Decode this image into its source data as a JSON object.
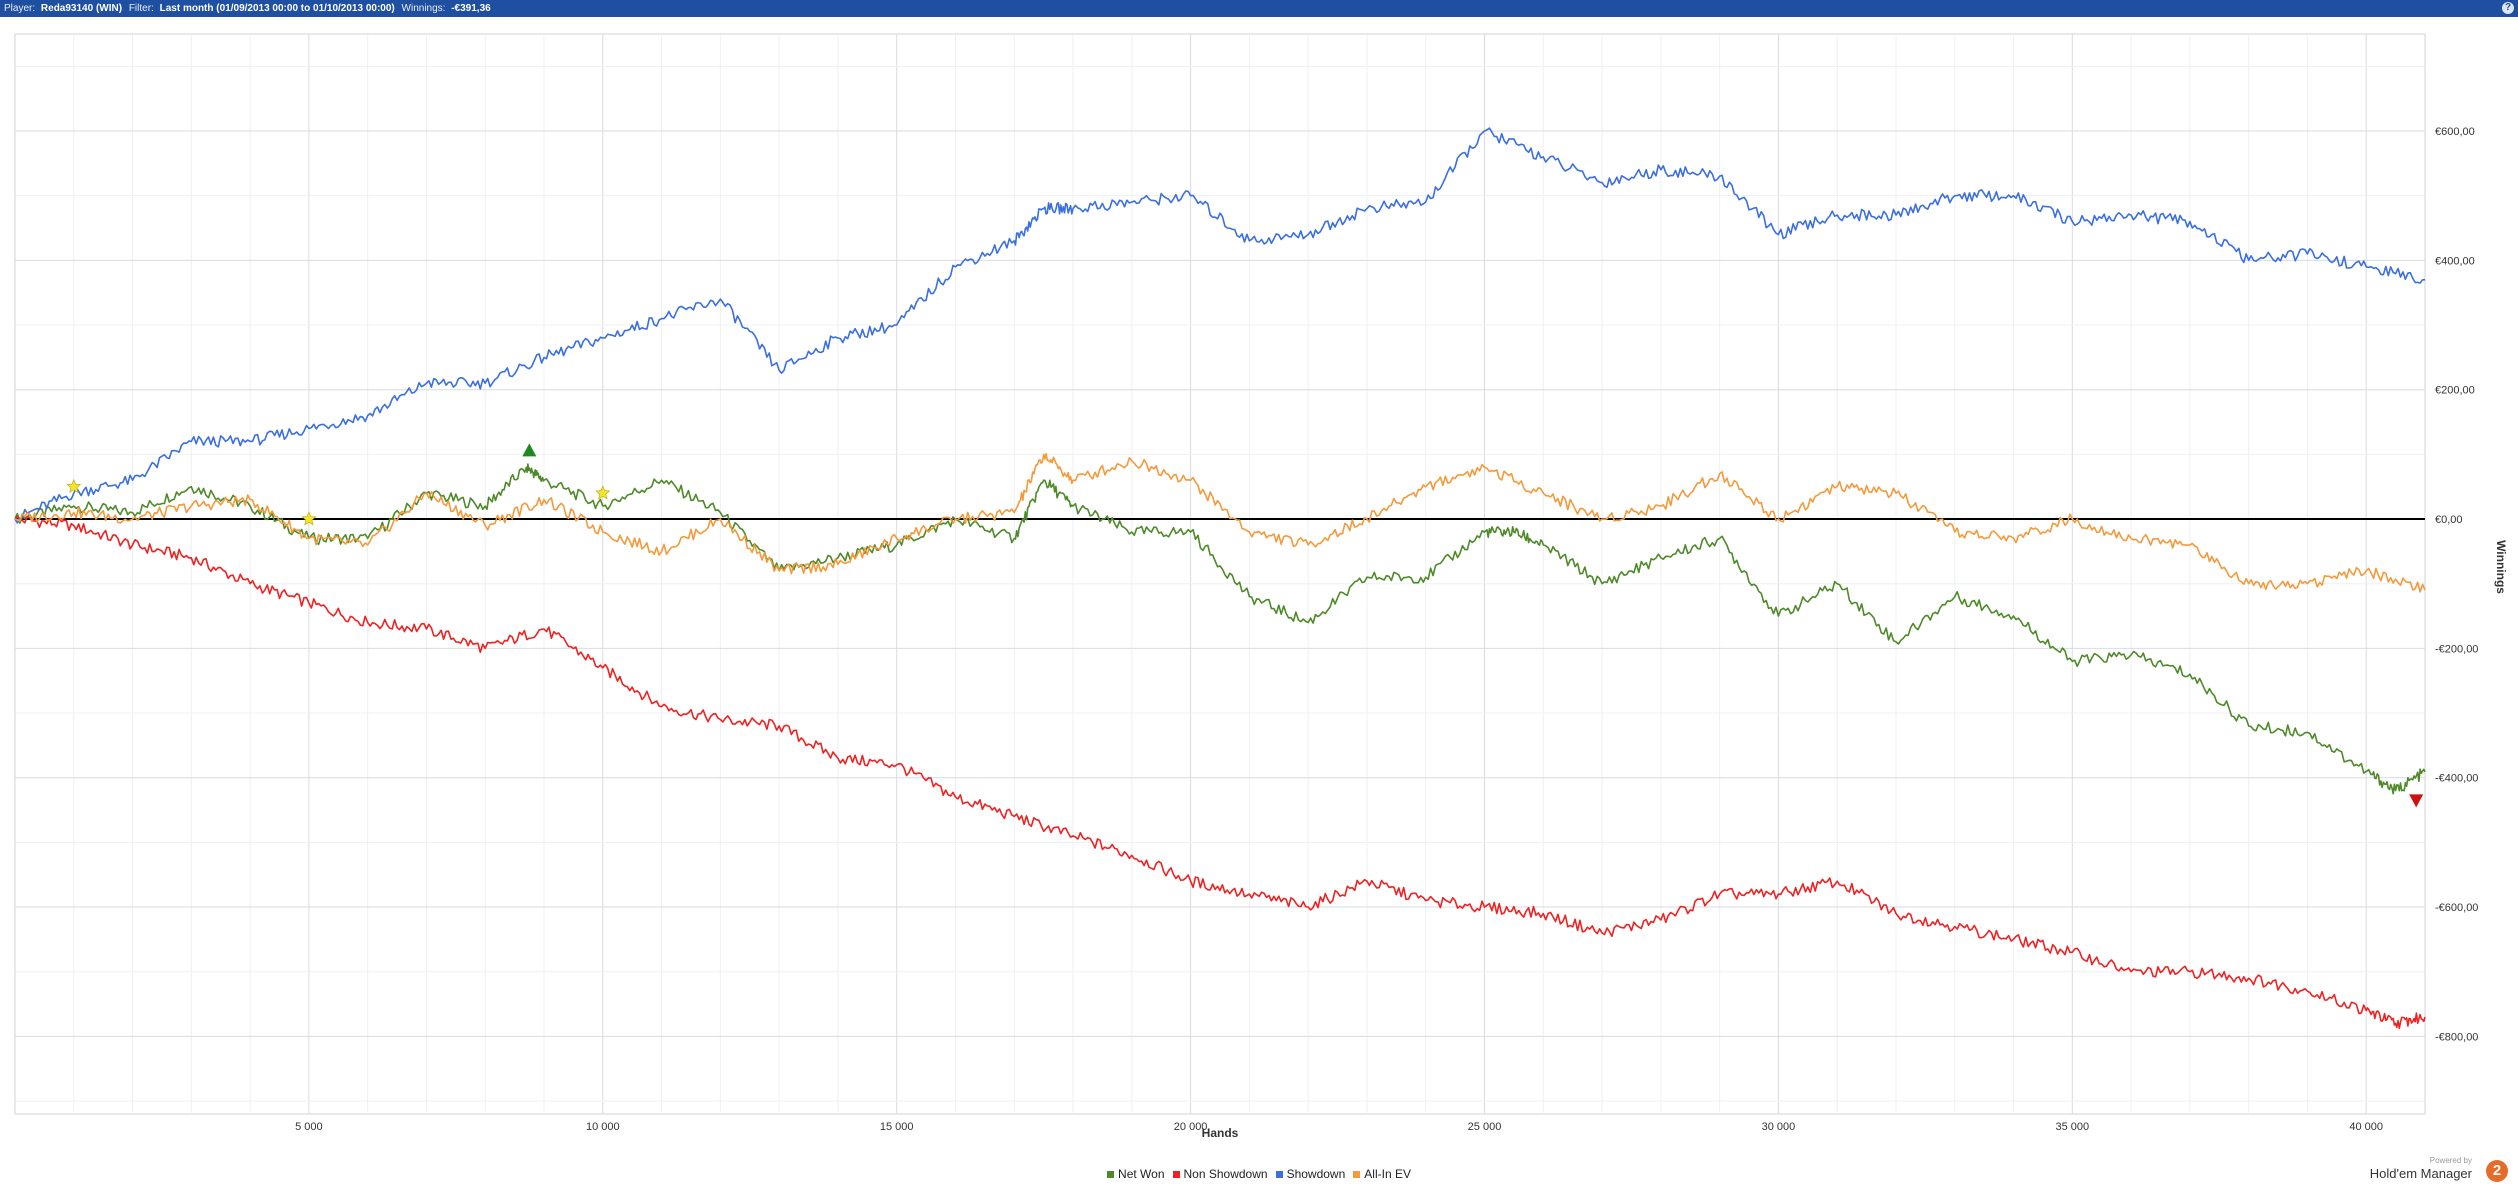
{
  "header": {
    "player_label": "Player:",
    "player_value": "Reda93140 (WIN)",
    "filter_label": "Filter:",
    "filter_value": "Last month (01/09/2013 00:00 to 01/10/2013 00:00)",
    "winnings_label": "Winnings:",
    "winnings_value": "-€391,36",
    "help_icon": "question-mark-icon",
    "bar_color": "#1f4fa0"
  },
  "branding": {
    "powered_by": "Powered by",
    "name": "Hold'em Manager",
    "logo_text": "2"
  },
  "chart_data": {
    "type": "line",
    "xlabel": "Hands",
    "ylabel": "Winnings",
    "xlim": [
      0,
      41000
    ],
    "ylim": [
      -920,
      750
    ],
    "x_ticks": [
      5000,
      10000,
      15000,
      20000,
      25000,
      30000,
      35000,
      40000
    ],
    "x_tick_labels": [
      "5 000",
      "10 000",
      "15 000",
      "20 000",
      "25 000",
      "30 000",
      "35 000",
      "40 000"
    ],
    "y_ticks": [
      600,
      400,
      200,
      0,
      -200,
      -400,
      -600,
      -800
    ],
    "y_tick_labels": [
      "€600,00",
      "€400,00",
      "€200,00",
      "€0,00",
      "-€200,00",
      "-€400,00",
      "-€600,00",
      "-€800,00"
    ],
    "grid": true,
    "legend_position": "bottom",
    "series": [
      {
        "name": "Net Won",
        "color": "#4e8a2a",
        "x": [
          0,
          1000,
          2000,
          3000,
          4000,
          5000,
          6000,
          7000,
          8000,
          8700,
          9000,
          10000,
          11000,
          12000,
          13000,
          14000,
          15000,
          16000,
          17000,
          17500,
          18000,
          19000,
          20000,
          21000,
          22000,
          23000,
          24000,
          25000,
          25500,
          26000,
          27000,
          28000,
          29000,
          30000,
          31000,
          32000,
          33000,
          34000,
          35000,
          36000,
          37000,
          38000,
          39000,
          40000,
          40500,
          41000
        ],
        "y": [
          0,
          20,
          10,
          50,
          20,
          -30,
          -30,
          40,
          20,
          80,
          60,
          20,
          60,
          10,
          -80,
          -60,
          -40,
          0,
          -30,
          60,
          20,
          -20,
          -20,
          -120,
          -160,
          -90,
          -90,
          -20,
          -20,
          -40,
          -100,
          -60,
          -30,
          -150,
          -100,
          -190,
          -120,
          -150,
          -220,
          -210,
          -240,
          -320,
          -330,
          -390,
          -420,
          -391
        ]
      },
      {
        "name": "Non Showdown",
        "color": "#ee2222",
        "x": [
          0,
          1000,
          2000,
          3000,
          4000,
          5000,
          6000,
          7000,
          8000,
          9000,
          10000,
          11000,
          12000,
          13000,
          14000,
          15000,
          16000,
          17000,
          18000,
          19000,
          20000,
          21000,
          22000,
          23000,
          24000,
          25000,
          26000,
          27000,
          28000,
          29000,
          30000,
          31000,
          32000,
          33000,
          34000,
          35000,
          36000,
          37000,
          38000,
          39000,
          40000,
          40500,
          41000
        ],
        "y": [
          0,
          -10,
          -40,
          -60,
          -100,
          -130,
          -160,
          -170,
          -200,
          -170,
          -230,
          -290,
          -310,
          -320,
          -370,
          -380,
          -430,
          -460,
          -490,
          -520,
          -560,
          -580,
          -600,
          -560,
          -590,
          -600,
          -610,
          -640,
          -620,
          -580,
          -580,
          -560,
          -610,
          -630,
          -650,
          -670,
          -700,
          -700,
          -710,
          -730,
          -760,
          -780,
          -770
        ]
      },
      {
        "name": "Showdown",
        "color": "#3b6fe0",
        "x": [
          0,
          1000,
          2000,
          3000,
          4000,
          5000,
          6000,
          7000,
          8000,
          9000,
          10000,
          11000,
          12000,
          13000,
          14000,
          15000,
          16000,
          17000,
          17500,
          18000,
          19000,
          20000,
          21000,
          22000,
          23000,
          24000,
          25000,
          26000,
          27000,
          28000,
          29000,
          30000,
          31000,
          32000,
          33000,
          34000,
          35000,
          36000,
          37000,
          38000,
          39000,
          40000,
          41000
        ],
        "y": [
          0,
          40,
          60,
          120,
          120,
          140,
          160,
          210,
          210,
          250,
          280,
          310,
          340,
          230,
          280,
          300,
          390,
          430,
          480,
          480,
          490,
          500,
          430,
          440,
          480,
          490,
          600,
          560,
          520,
          540,
          530,
          440,
          470,
          470,
          500,
          500,
          460,
          470,
          460,
          400,
          410,
          390,
          370
        ]
      },
      {
        "name": "All-In EV",
        "color": "#f39a3c",
        "x": [
          0,
          1000,
          2000,
          3000,
          4000,
          5000,
          6000,
          7000,
          8000,
          9000,
          10000,
          11000,
          12000,
          13000,
          14000,
          15000,
          16000,
          17000,
          17500,
          18000,
          19000,
          20000,
          21000,
          22000,
          23000,
          24000,
          25000,
          26000,
          27000,
          28000,
          29000,
          30000,
          31000,
          32000,
          33000,
          34000,
          35000,
          36000,
          37000,
          38000,
          39000,
          40000,
          41000
        ],
        "y": [
          0,
          10,
          0,
          20,
          30,
          -30,
          -40,
          40,
          -10,
          30,
          -20,
          -50,
          0,
          -80,
          -70,
          -30,
          0,
          10,
          100,
          60,
          90,
          60,
          -20,
          -40,
          0,
          50,
          80,
          40,
          0,
          20,
          70,
          0,
          50,
          40,
          -20,
          -30,
          0,
          -30,
          -40,
          -100,
          -100,
          -80,
          -110
        ]
      }
    ]
  }
}
